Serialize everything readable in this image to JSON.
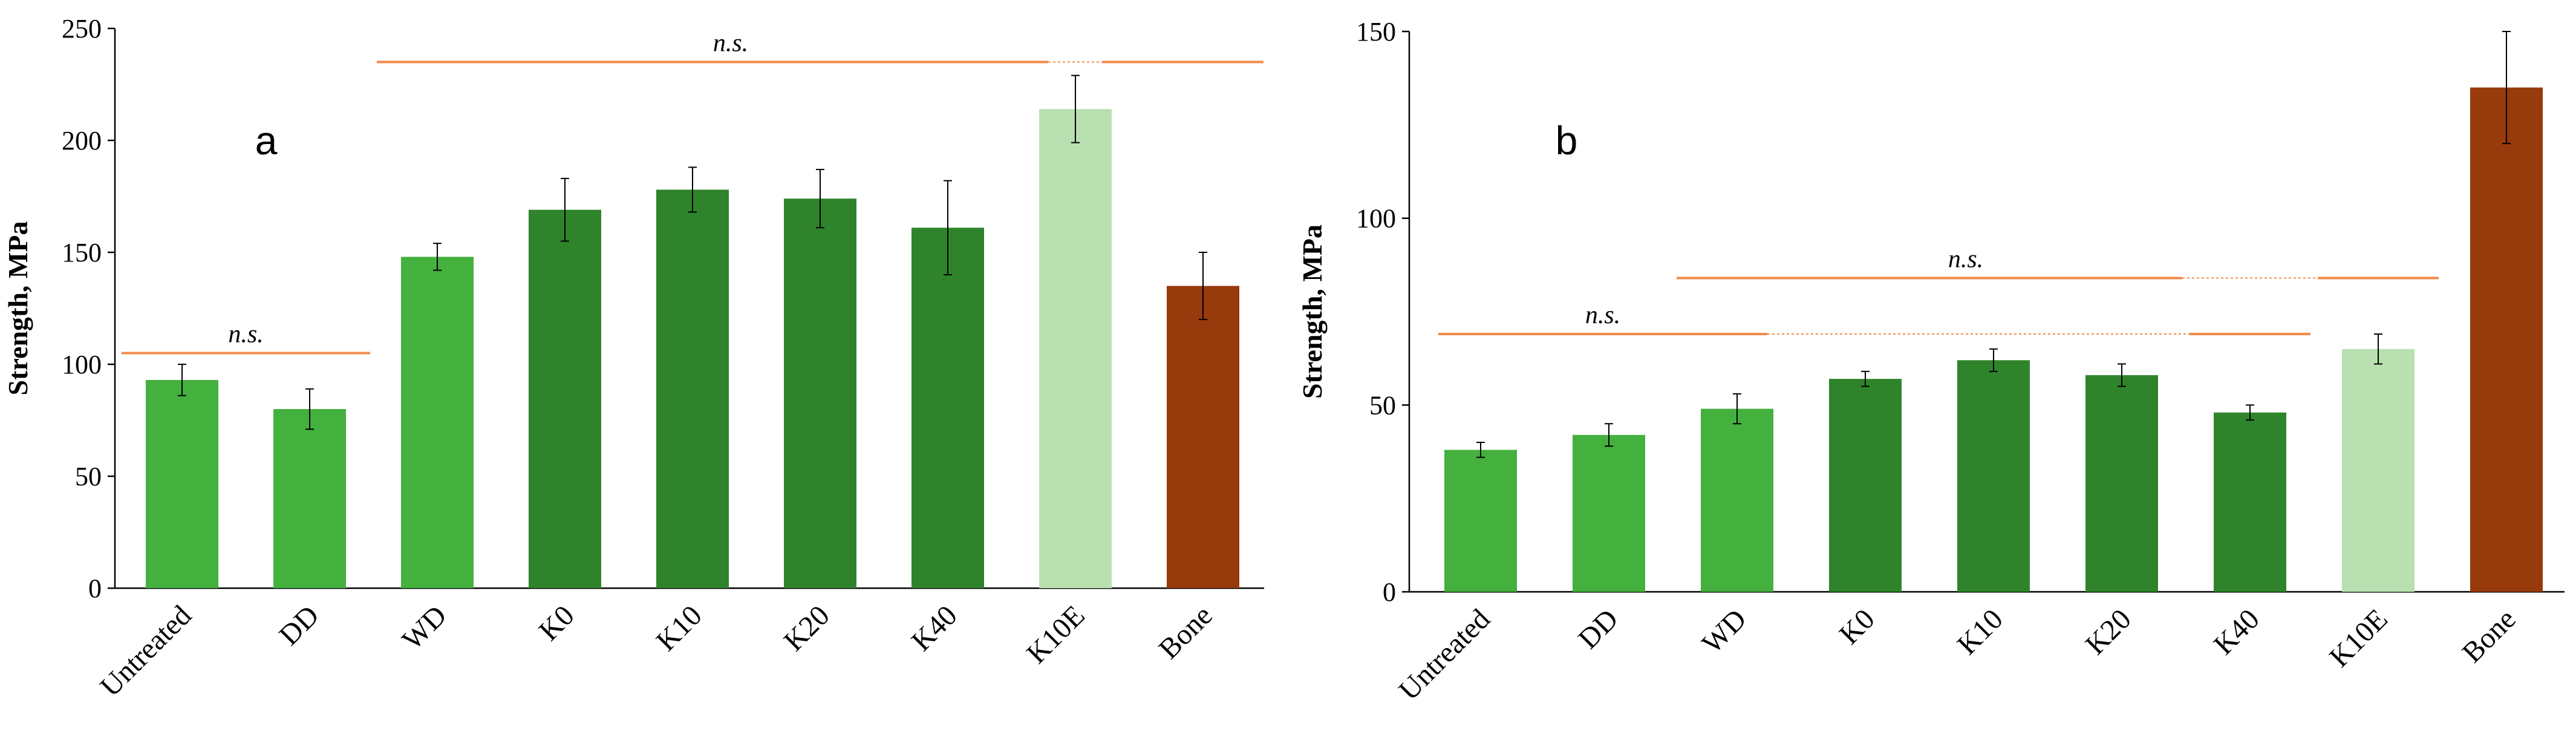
{
  "colors": {
    "light_green": "#44b03e",
    "dark_green": "#2f842b",
    "pale_green": "#b8e0b0",
    "bone": "#973a0c",
    "bracket": "#f08a4b",
    "axis": "#000000"
  },
  "chart_data": [
    {
      "type": "bar",
      "panel": "a",
      "ylabel": "Strength, MPa",
      "ylim": [
        0,
        250
      ],
      "yticks": [
        0,
        50,
        100,
        150,
        200,
        250
      ],
      "ytick_labels": [
        "0",
        "50",
        "100",
        "150",
        "200",
        "250"
      ],
      "categories": [
        "Untreated",
        "DD",
        "WD",
        "K0",
        "K10",
        "K20",
        "K40",
        "K10E",
        "Bone"
      ],
      "values": [
        93,
        80,
        148,
        169,
        178,
        174,
        161,
        214,
        135
      ],
      "errors": [
        7,
        9,
        6,
        14,
        10,
        13,
        21,
        15,
        15
      ],
      "bar_colors": [
        "light_green",
        "light_green",
        "light_green",
        "dark_green",
        "dark_green",
        "dark_green",
        "dark_green",
        "pale_green",
        "bone"
      ],
      "annotations": [
        {
          "text": "n.s.",
          "from": "Untreated",
          "to": "DD",
          "y": 105,
          "skip": null
        },
        {
          "text": "n.s.",
          "from": "WD",
          "to": "Bone",
          "y": 235,
          "skip": "K10E"
        }
      ]
    },
    {
      "type": "bar",
      "panel": "b",
      "ylabel": "Strength, MPa",
      "ylim": [
        0,
        150
      ],
      "yticks": [
        0,
        50,
        100,
        150
      ],
      "ytick_labels": [
        "0",
        "50",
        "100",
        "150"
      ],
      "categories": [
        "Untreated",
        "DD",
        "WD",
        "K0",
        "K10",
        "K20",
        "K40",
        "K10E",
        "Bone"
      ],
      "values": [
        38,
        42,
        49,
        57,
        62,
        58,
        48,
        65,
        135
      ],
      "errors": [
        2,
        3,
        4,
        2,
        3,
        3,
        2,
        4,
        15
      ],
      "bar_colors": [
        "light_green",
        "light_green",
        "light_green",
        "dark_green",
        "dark_green",
        "dark_green",
        "dark_green",
        "pale_green",
        "bone"
      ],
      "annotations": [
        {
          "text": "n.s.",
          "from": "Untreated",
          "to": "K40",
          "y": 69,
          "skip": "K0-K20"
        },
        {
          "text": "n.s.",
          "from": "WD",
          "to": "K10E",
          "y": 84,
          "skip": "K40"
        }
      ]
    }
  ]
}
